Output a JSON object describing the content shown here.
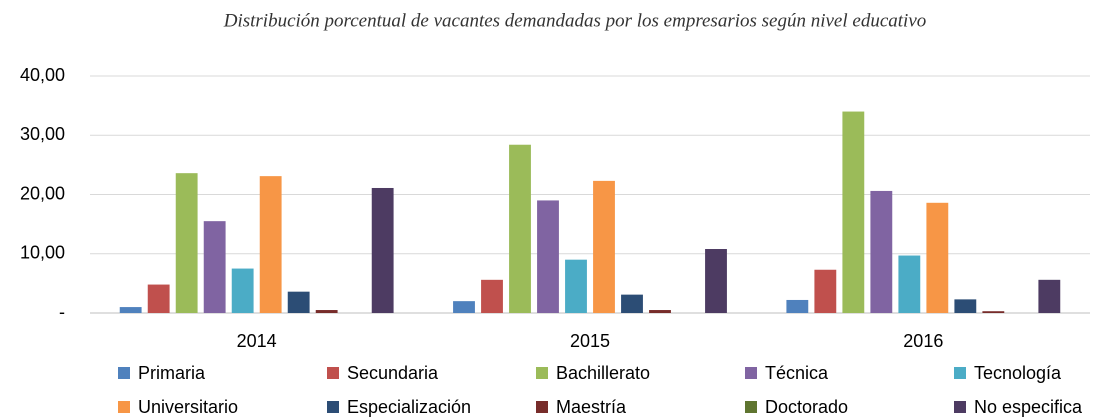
{
  "chart_data": {
    "type": "bar",
    "title": "Distribución porcentual de vacantes demandadas por los empresarios según nivel educativo",
    "categories": [
      "2014",
      "2015",
      "2016"
    ],
    "series": [
      {
        "name": "Primaria",
        "color": "#4f81bd",
        "values": [
          1.0,
          2.0,
          2.2
        ]
      },
      {
        "name": "Secundaria",
        "color": "#c0504d",
        "values": [
          4.8,
          5.6,
          7.3
        ]
      },
      {
        "name": "Bachillerato",
        "color": "#9bbb59",
        "values": [
          23.6,
          28.4,
          34.0
        ]
      },
      {
        "name": "Técnica",
        "color": "#8064a2",
        "values": [
          15.5,
          19.0,
          20.6
        ]
      },
      {
        "name": "Tecnología",
        "color": "#4bacc6",
        "values": [
          7.5,
          9.0,
          9.7
        ]
      },
      {
        "name": "Universitario",
        "color": "#f79646",
        "values": [
          23.1,
          22.3,
          18.6
        ]
      },
      {
        "name": "Especialización",
        "color": "#2c4d75",
        "values": [
          3.6,
          3.1,
          2.3
        ]
      },
      {
        "name": "Maestría",
        "color": "#772c2a",
        "values": [
          0.5,
          0.5,
          0.3
        ]
      },
      {
        "name": "Doctorado",
        "color": "#5f7530",
        "values": [
          0,
          0,
          0
        ]
      },
      {
        "name": "No especifica",
        "color": "#4d3b62",
        "values": [
          21.1,
          10.8,
          5.6
        ]
      }
    ],
    "ylim": [
      0,
      40
    ],
    "yticks": [
      {
        "value": 0,
        "label": "-"
      },
      {
        "value": 10,
        "label": "10,00"
      },
      {
        "value": 20,
        "label": "20,00"
      },
      {
        "value": 30,
        "label": "30,00"
      },
      {
        "value": 40,
        "label": "40,00"
      }
    ],
    "grid": true
  }
}
